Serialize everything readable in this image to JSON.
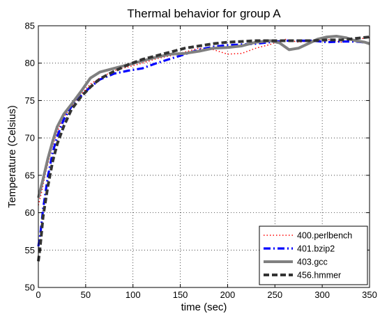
{
  "chart_data": {
    "type": "line",
    "title": "Thermal behavior for group A",
    "xlabel": "time (sec)",
    "ylabel": "Temperature (Celsius)",
    "xlim": [
      0,
      350
    ],
    "ylim": [
      50,
      85
    ],
    "xticks": [
      0,
      50,
      100,
      150,
      200,
      250,
      300,
      350
    ],
    "yticks": [
      50,
      55,
      60,
      65,
      70,
      75,
      80,
      85
    ],
    "grid": true,
    "legend_position": "bottom-right",
    "series": [
      {
        "name": "400.perlbench",
        "color": "#ff0000",
        "style": "dotted",
        "x": [
          0,
          3,
          8,
          14,
          20,
          27,
          35,
          45,
          55,
          65,
          80,
          95,
          110,
          125,
          140,
          155,
          170,
          185,
          200,
          215,
          230,
          245,
          260,
          275,
          290,
          305,
          320,
          335,
          350
        ],
        "y": [
          61.0,
          62.5,
          65.5,
          68.5,
          70.8,
          72.8,
          74.2,
          75.8,
          77.2,
          78.0,
          79.0,
          79.5,
          80.0,
          80.6,
          81.0,
          81.5,
          82.0,
          81.8,
          81.2,
          81.3,
          82.0,
          82.5,
          83.2,
          82.8,
          83.0,
          83.2,
          82.8,
          83.2,
          83.4
        ]
      },
      {
        "name": "401.bzip2",
        "color": "#0000ff",
        "style": "dashdot",
        "x": [
          0,
          2,
          5,
          10,
          15,
          20,
          27,
          35,
          45,
          55,
          65,
          80,
          95,
          110,
          125,
          140,
          155,
          170,
          185,
          200,
          215,
          230,
          245,
          260,
          275,
          290,
          305,
          320,
          335,
          350
        ],
        "y": [
          55.5,
          57.0,
          60.5,
          64.8,
          68.0,
          70.2,
          72.5,
          74.2,
          75.6,
          76.8,
          77.8,
          78.6,
          79.0,
          79.3,
          80.0,
          80.6,
          81.2,
          81.8,
          82.2,
          82.4,
          82.5,
          82.6,
          82.8,
          83.0,
          83.0,
          83.0,
          82.8,
          82.9,
          82.9,
          82.7
        ]
      },
      {
        "name": "403.gcc",
        "color": "#808080",
        "style": "solid",
        "x": [
          0,
          5,
          10,
          15,
          20,
          27,
          35,
          45,
          55,
          65,
          80,
          95,
          110,
          125,
          140,
          155,
          170,
          185,
          200,
          215,
          230,
          245,
          255,
          265,
          275,
          285,
          295,
          305,
          315,
          325,
          335,
          345,
          350
        ],
        "y": [
          62.0,
          64.5,
          67.2,
          69.5,
          71.5,
          73.2,
          74.5,
          76.2,
          78.0,
          78.8,
          79.3,
          79.8,
          80.3,
          80.8,
          81.2,
          81.3,
          81.6,
          82.0,
          82.1,
          82.3,
          82.8,
          83.0,
          82.7,
          81.8,
          82.0,
          82.6,
          83.2,
          83.5,
          83.6,
          83.4,
          83.0,
          82.8,
          82.6
        ]
      },
      {
        "name": "456.hmmer",
        "color": "#333333",
        "style": "dashed",
        "x": [
          0,
          2,
          5,
          10,
          15,
          20,
          27,
          35,
          45,
          55,
          65,
          80,
          95,
          110,
          125,
          140,
          155,
          170,
          185,
          200,
          215,
          230,
          245,
          260,
          275,
          290,
          305,
          320,
          335,
          350
        ],
        "y": [
          53.5,
          55.5,
          59.5,
          63.5,
          66.8,
          69.2,
          71.6,
          73.8,
          75.5,
          76.8,
          77.9,
          78.9,
          79.8,
          80.5,
          81.0,
          81.5,
          82.0,
          82.3,
          82.6,
          82.8,
          82.9,
          83.0,
          83.0,
          83.0,
          83.0,
          83.0,
          83.1,
          83.1,
          83.3,
          83.5
        ]
      }
    ]
  }
}
